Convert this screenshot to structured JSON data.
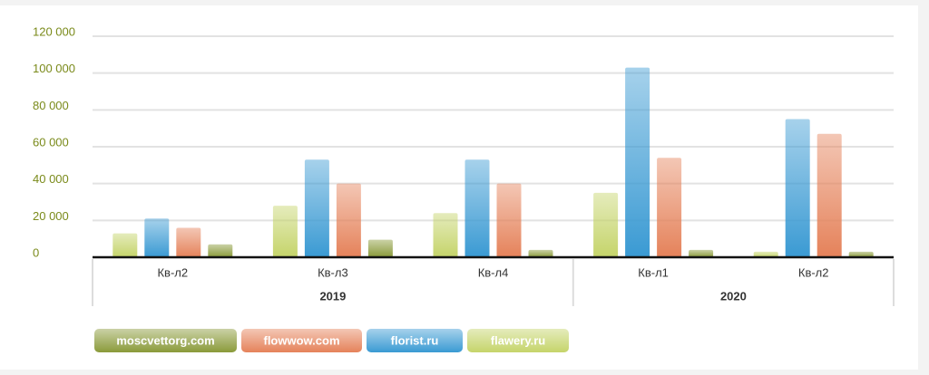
{
  "chart_data": {
    "type": "bar",
    "categories": [
      "Кв-л2",
      "Кв-л3",
      "Кв-л4",
      "Кв-л1",
      "Кв-л2"
    ],
    "category_groups": [
      "2019",
      "2019",
      "2019",
      "2020",
      "2020"
    ],
    "series": [
      {
        "name": "moscvettorg.com",
        "color": "#8a9a3a",
        "values": [
          7000,
          9500,
          4000,
          4000,
          3000
        ]
      },
      {
        "name": "flowwow.com",
        "color": "#e5825a",
        "values": [
          16000,
          40000,
          40000,
          54000,
          67000
        ]
      },
      {
        "name": "florist.ru",
        "color": "#3a9ad3",
        "values": [
          21000,
          53000,
          53000,
          103000,
          75000
        ]
      },
      {
        "name": "flawery.ru",
        "color": "#c5d46a",
        "values": [
          13000,
          28000,
          24000,
          35000,
          3000
        ]
      }
    ],
    "ylim": [
      0,
      120000
    ],
    "yticks": [
      0,
      {
        "value": 20000,
        "label": "20 000"
      },
      {
        "value": 40000,
        "label": "40 000"
      },
      {
        "value": 60000,
        "label": "60 000"
      },
      {
        "value": 80000,
        "label": "80 000"
      },
      {
        "value": 100000,
        "label": "100 000"
      },
      {
        "value": 120000,
        "label": "120 000"
      }
    ],
    "grid": true,
    "legend": "bottom-left"
  }
}
